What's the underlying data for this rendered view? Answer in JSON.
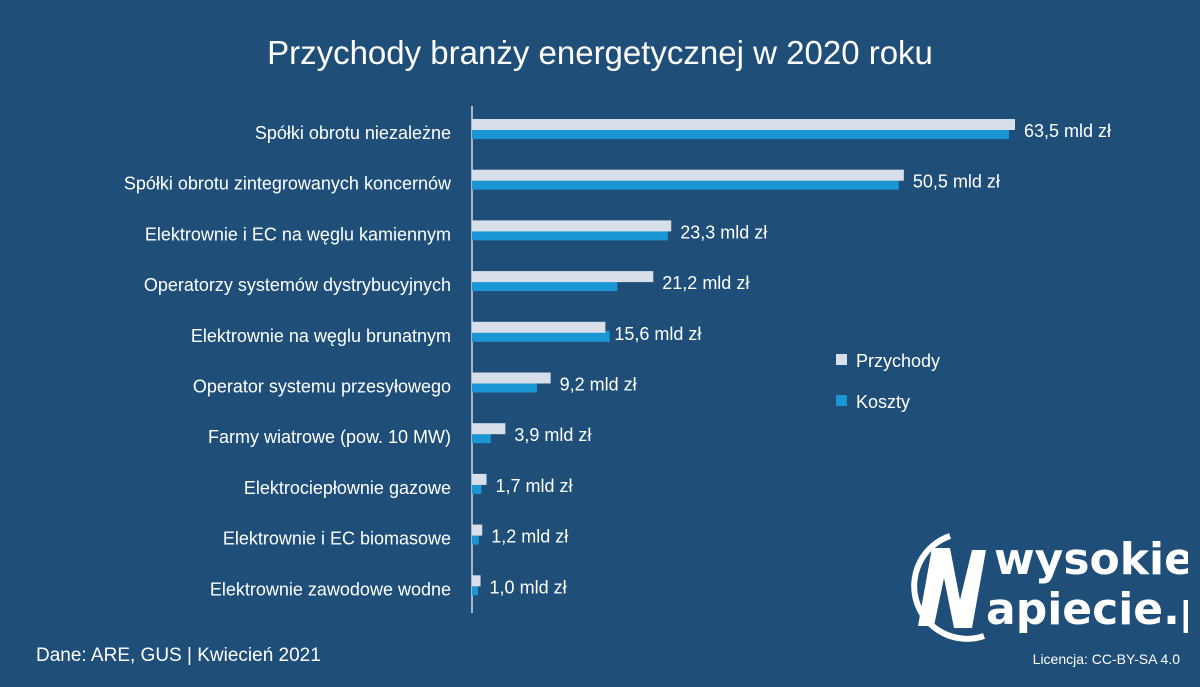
{
  "chart_data": {
    "type": "bar",
    "orientation": "horizontal",
    "title": "Przychody branży energetycznej w 2020 roku",
    "categories": [
      "Spółki obrotu niezależne",
      "Spółki obrotu zintegrowanych koncernów",
      "Elektrownie i EC na węglu kamiennym",
      "Operatorzy systemów dystrybucyjnych",
      "Elektrownie na węglu brunatnym",
      "Operator systemu przesyłowego",
      "Farmy wiatrowe (pow. 10 MW)",
      "Elektrociepłownie gazowe",
      "Elektrownie i EC biomasowe",
      "Elektrownie zawodowe wodne"
    ],
    "series": [
      {
        "name": "Przychody",
        "color": "#d9dfe8",
        "values": [
          63.5,
          50.5,
          23.3,
          21.2,
          15.6,
          9.2,
          3.9,
          1.7,
          1.2,
          1.0
        ]
      },
      {
        "name": "Koszty",
        "color": "#1a96d4",
        "values": [
          62.8,
          49.9,
          22.9,
          17.0,
          16.1,
          7.6,
          2.2,
          1.1,
          0.8,
          0.7
        ]
      }
    ],
    "data_labels": [
      "63,5 mld zł",
      "50,5 mld zł",
      "23,3 mld zł",
      "21,2 mld zł",
      "15,6 mld zł",
      "9,2 mld zł",
      "3,9 mld zł",
      "1,7 mld zł",
      "1,2 mld zł",
      "1,0 mld zł"
    ],
    "xlim": [
      0,
      63.5
    ],
    "grid": false,
    "legend_position": "right"
  },
  "footer": {
    "source": "Dane: ARE, GUS  |  Kwiecień 2021",
    "license": "Licencja: CC-BY-SA 4.0"
  },
  "logo": {
    "line1": "wysokie",
    "line2": "apiecie.pl",
    "icon": "lightning-n-circle-icon"
  }
}
